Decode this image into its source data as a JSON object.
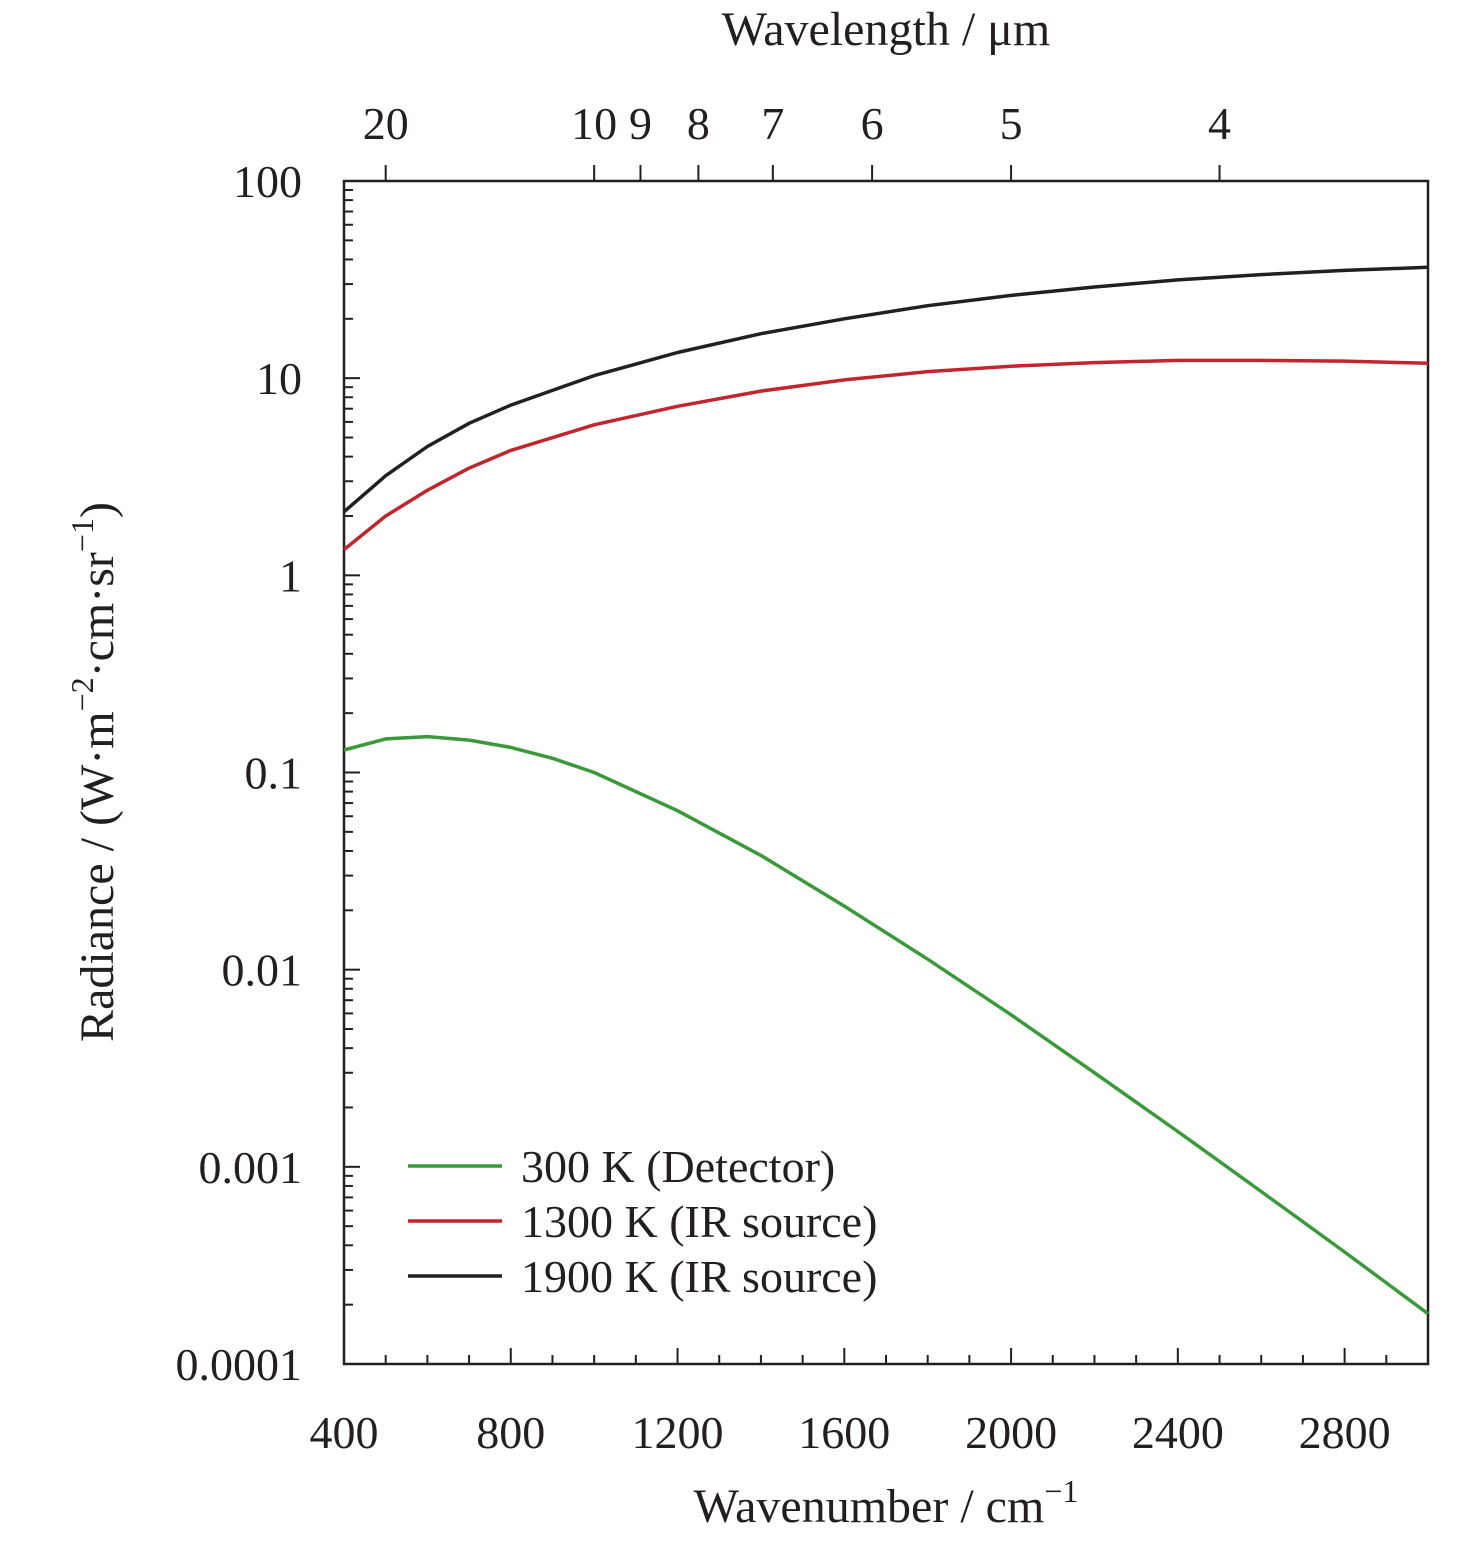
{
  "chart_data": {
    "type": "line",
    "xlabel": "Wavenumber / cm",
    "xlabel_sup": "−1",
    "ylabel_parts": [
      "Radiance / (W·m",
      "−2",
      "·cm·sr",
      "−1",
      ")"
    ],
    "top_axis_label": "Wavelength / μm",
    "xlim": [
      400,
      3000
    ],
    "ylim": [
      0.0001,
      100
    ],
    "y_scale": "log",
    "x_ticks": [
      400,
      800,
      1200,
      1600,
      2000,
      2400,
      2800
    ],
    "x_tick_labels": [
      "400",
      "800",
      "1200",
      "1600",
      "2000",
      "2400",
      "2800"
    ],
    "y_ticks": [
      0.0001,
      0.001,
      0.01,
      0.1,
      1,
      10,
      100
    ],
    "y_tick_labels": [
      "0.0001",
      "0.001",
      "0.01",
      "0.1",
      "1",
      "10",
      "100"
    ],
    "top_ticks_um": [
      20,
      10,
      9,
      8,
      7,
      6,
      5,
      4
    ],
    "top_tick_labels": [
      "20",
      "10",
      "9",
      "8",
      "7",
      "6",
      "5",
      "4"
    ],
    "legend_position": "lower-left",
    "series": [
      {
        "name": "300 K (Detector)",
        "color": "#3a9a3a",
        "x": [
          400,
          500,
          600,
          700,
          800,
          900,
          1000,
          1200,
          1400,
          1600,
          1800,
          2000,
          2200,
          2400,
          2600,
          2800,
          3000
        ],
        "y": [
          0.13,
          0.148,
          0.152,
          0.146,
          0.134,
          0.118,
          0.1,
          0.064,
          0.038,
          0.021,
          0.0113,
          0.0059,
          0.003,
          0.00151,
          0.00075,
          0.00037,
          0.00018
        ]
      },
      {
        "name": "1300 K (IR source)",
        "color": "#c0262d",
        "x": [
          400,
          500,
          600,
          700,
          800,
          1000,
          1200,
          1400,
          1600,
          1800,
          2000,
          2200,
          2400,
          2600,
          2800,
          3000
        ],
        "y": [
          1.35,
          2.0,
          2.7,
          3.5,
          4.3,
          5.8,
          7.2,
          8.6,
          9.8,
          10.8,
          11.5,
          12.0,
          12.3,
          12.3,
          12.2,
          11.9
        ]
      },
      {
        "name": "1900 K (IR source)",
        "color": "#231f20",
        "x": [
          400,
          500,
          600,
          700,
          800,
          1000,
          1200,
          1400,
          1600,
          1800,
          2000,
          2200,
          2400,
          2600,
          2800,
          3000
        ],
        "y": [
          2.1,
          3.2,
          4.5,
          5.9,
          7.3,
          10.3,
          13.5,
          16.8,
          20.0,
          23.3,
          26.3,
          29.0,
          31.5,
          33.5,
          35.2,
          36.5
        ]
      }
    ]
  }
}
